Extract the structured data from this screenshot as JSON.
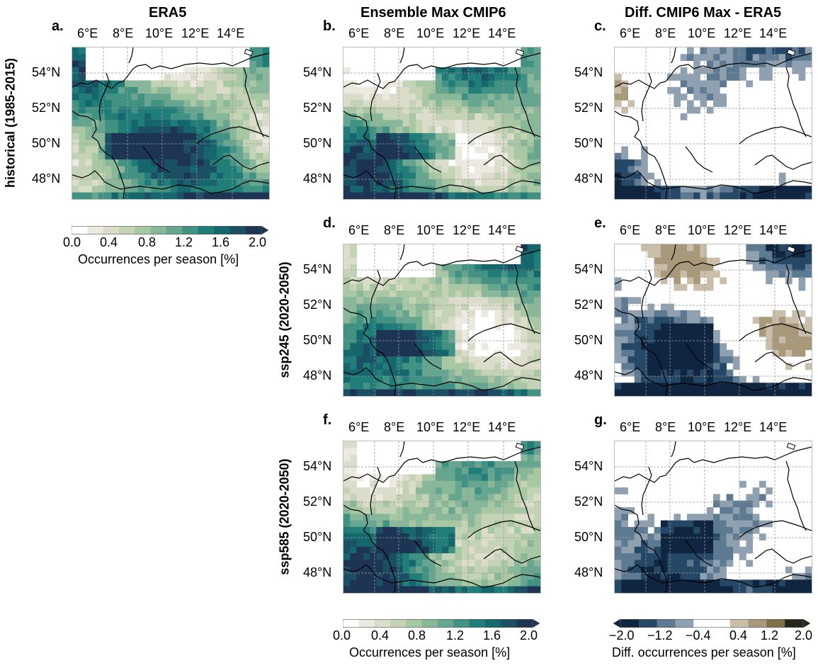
{
  "column_titles": [
    "ERA5",
    "Ensemble Max CMIP6",
    "Diff. CMIP6 Max - ERA5"
  ],
  "row_titles": [
    "historical (1985-2015)",
    "ssp245 (2020-2050)",
    "ssp585 (2020-2050)"
  ],
  "panel_labels": [
    "a.",
    "b.",
    "c.",
    "d.",
    "e.",
    "f.",
    "g."
  ],
  "lon_ticks": [
    "6°E",
    "8°E",
    "10°E",
    "12°E",
    "14°E"
  ],
  "lat_ticks": [
    "54°N",
    "52°N",
    "50°N",
    "48°N"
  ],
  "colorbar_occurrence": {
    "ticks": [
      "0.0",
      "0.4",
      "0.8",
      "1.2",
      "1.6",
      "2.0"
    ],
    "label": "Occurrences per season [%]",
    "colors": [
      "#ffffff",
      "#ece9e1",
      "#dcdccb",
      "#c4d3b6",
      "#a8c7a3",
      "#89b79a",
      "#66a590",
      "#429283",
      "#217d78",
      "#15666d",
      "#1b4f63",
      "#1d3454"
    ]
  },
  "colorbar_diff": {
    "ticks": [
      "−2.0",
      "−1.2",
      "−0.4",
      "0.4",
      "1.2",
      "2.0"
    ],
    "label": "Diff. occurrences per season [%]",
    "colors": [
      "#0f2540",
      "#254867",
      "#5e7a92",
      "#8fa1b0",
      "#ffffff",
      "#ffffff",
      "#c9bea9",
      "#a8997a",
      "#7d6f48",
      "#25251a"
    ]
  }
}
